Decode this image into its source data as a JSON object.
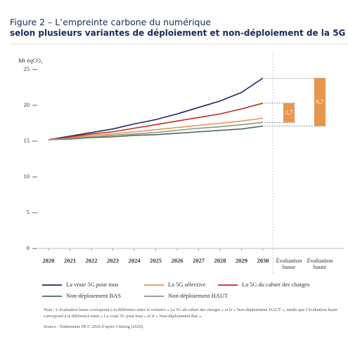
{
  "chart_data": {
    "type": "line",
    "title": "Figure 2 – L’empreinte carbone du numérique",
    "subtitle": "selon plusieurs variantes de déploiement et non-déploiement de la 5G",
    "y_label": "Mt éqCO₂",
    "x": [
      2020,
      2021,
      2022,
      2023,
      2024,
      2025,
      2026,
      2027,
      2028,
      2029,
      2030
    ],
    "xticks": [
      2020,
      2021,
      2022,
      2023,
      2024,
      2025,
      2026,
      2027,
      2028,
      2029,
      2030
    ],
    "ylim": [
      0,
      25
    ],
    "yticks": [
      0,
      5,
      10,
      15,
      20,
      25
    ],
    "series": [
      {
        "name": "La vraie 5G pour tous",
        "color": "#1b2a5c",
        "values": [
          15.2,
          15.7,
          16.2,
          16.7,
          17.4,
          18.0,
          18.8,
          19.7,
          20.6,
          21.8,
          23.8
        ]
      },
      {
        "name": "La 5G sélective",
        "color": "#e8954e",
        "values": [
          15.2,
          15.5,
          15.8,
          16.0,
          16.3,
          16.6,
          16.9,
          17.2,
          17.5,
          17.8,
          18.2
        ]
      },
      {
        "name": "La 5G du cahier des charges",
        "color": "#c52a20",
        "values": [
          15.2,
          15.6,
          16.0,
          16.3,
          16.8,
          17.3,
          17.8,
          18.3,
          18.8,
          19.5,
          20.3
        ]
      },
      {
        "name": "Non-déploiement BAS",
        "color": "#4d6a4d",
        "values": [
          15.2,
          15.3,
          15.5,
          15.6,
          15.8,
          15.9,
          16.1,
          16.3,
          16.5,
          16.7,
          17.1
        ]
      },
      {
        "name": "Non-déploiement HAUT",
        "color": "#8a968a",
        "values": [
          15.2,
          15.4,
          15.6,
          15.8,
          16.0,
          16.2,
          16.5,
          16.8,
          17.0,
          17.3,
          17.6
        ]
      }
    ],
    "evaluations": [
      {
        "label_lines": [
          "Évaluation",
          "basse"
        ],
        "value": 2.7,
        "value_label": "2,7",
        "color": "#e8954e"
      },
      {
        "label_lines": [
          "Évaluation",
          "haute"
        ],
        "value": 6.7,
        "value_label": "6,7",
        "color": "#e8954e"
      }
    ],
    "note": "Note : L’évaluation basse correspond à la différence entre le scénario « La 5G du cahier des charges » et le « Non-déploiement HAUT », tandis que l’évaluation haute correspond à la différence entre « La vraie 5G pour tous » et le « Non-déploiement Bas ».",
    "source": "Source : Traitements HCC 2020 d’après Citizing (2020)."
  }
}
